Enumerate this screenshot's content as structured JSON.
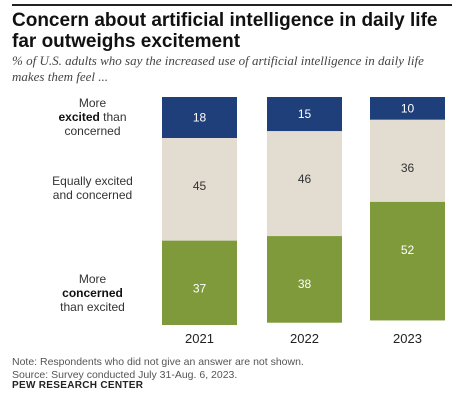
{
  "title": "Concern about artificial intelligence in daily life far outweighs excitement",
  "subtitle": "% of U.S. adults who say the increased use of artificial intelligence in daily life makes them feel ...",
  "labels": {
    "excited": {
      "pre": "More",
      "bold": "excited",
      "post": "than concerned"
    },
    "equal": {
      "text": "Equally excited and concerned"
    },
    "concerned": {
      "pre": "More",
      "bold": "concerned",
      "post": "than excited"
    }
  },
  "note": "Note: Respondents who did not give an answer are not shown.",
  "source": "Source: Survey conducted July 31-Aug. 6, 2023.",
  "credit": "PEW RESEARCH CENTER",
  "chart_data": {
    "type": "bar",
    "stacked": true,
    "categories": [
      "2021",
      "2022",
      "2023"
    ],
    "series": [
      {
        "name": "More excited than concerned",
        "values": [
          18,
          15,
          10
        ],
        "color": "#1f3f7a"
      },
      {
        "name": "Equally excited and concerned",
        "values": [
          45,
          46,
          36
        ],
        "color": "#e2ddd0"
      },
      {
        "name": "More concerned than excited",
        "values": [
          37,
          38,
          52
        ],
        "color": "#7f9a3a"
      }
    ],
    "ylim": [
      0,
      100
    ],
    "grid": false,
    "legend": "left"
  }
}
